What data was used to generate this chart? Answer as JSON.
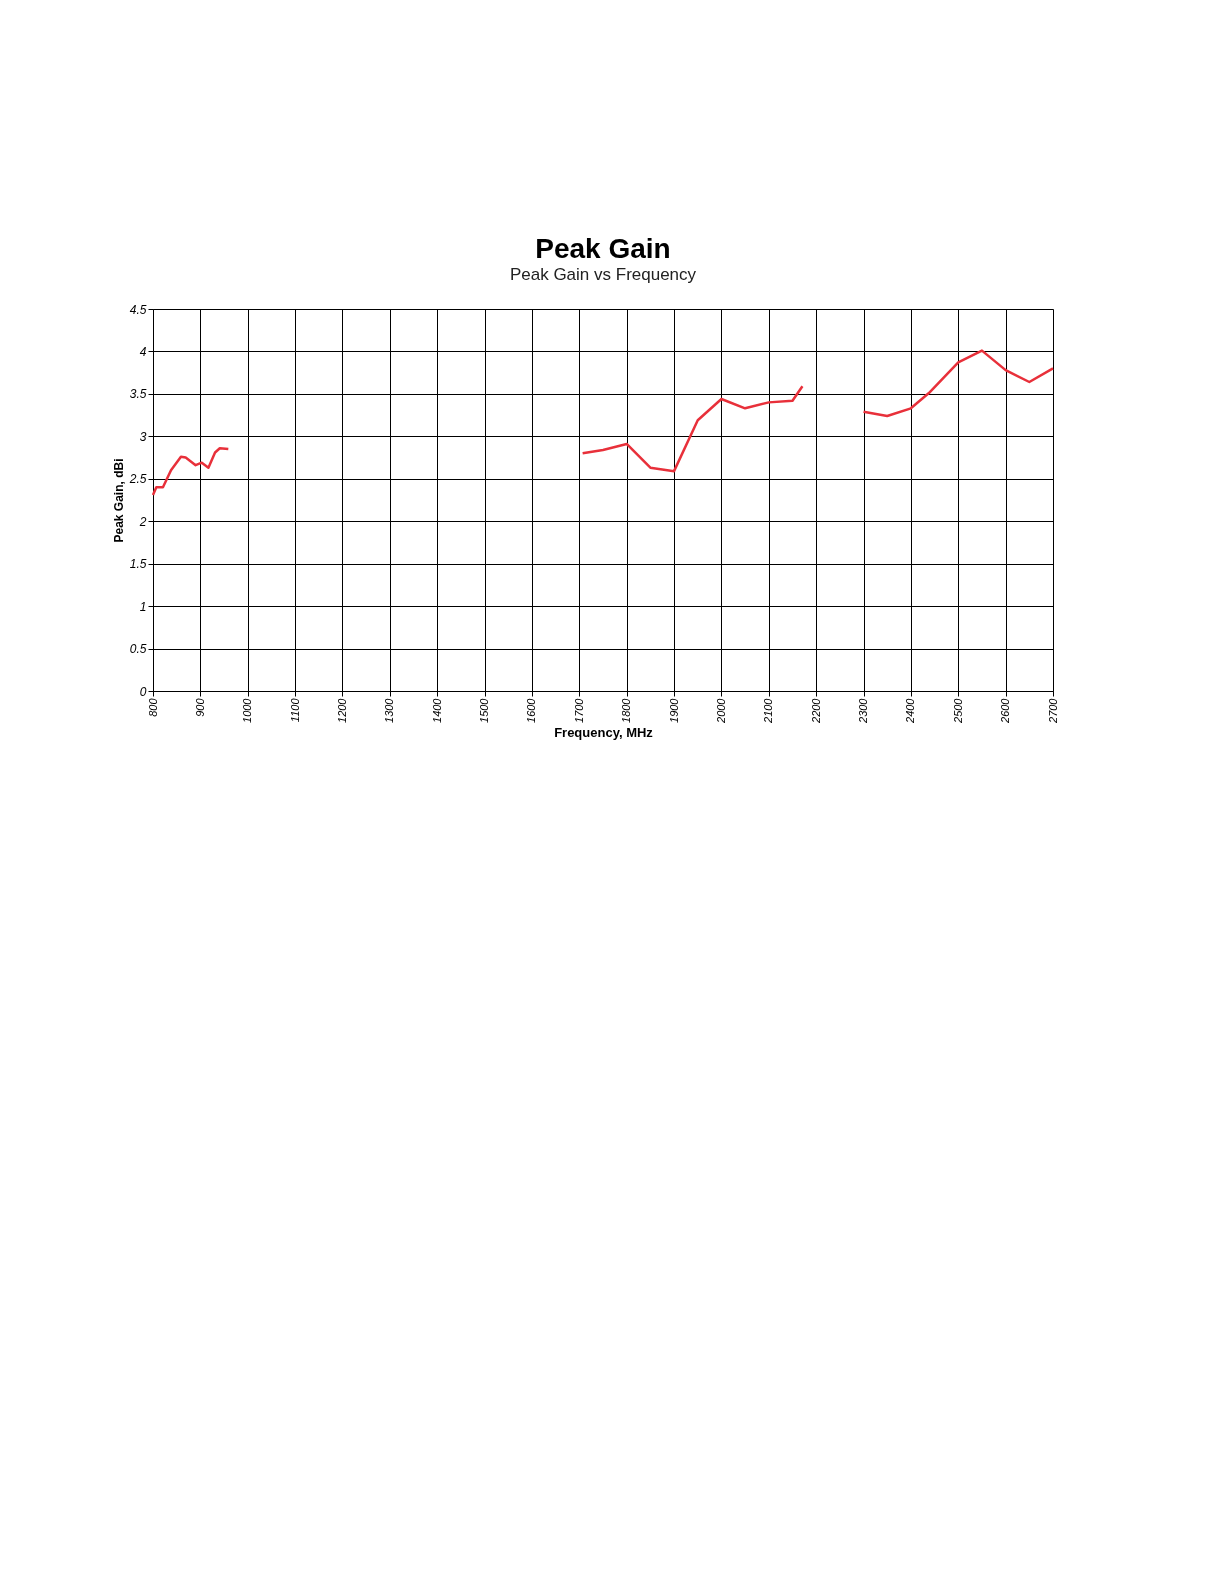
{
  "chart_data": {
    "type": "line",
    "title": "Peak Gain",
    "subtitle": "Peak Gain vs Frequency",
    "xlabel": "Frequency, MHz",
    "ylabel": "Peak Gain, dBi",
    "x": [
      800,
      807,
      821,
      838,
      859,
      869,
      890,
      903,
      917,
      931,
      941,
      959,
      1300,
      1707,
      1750,
      1800,
      1850,
      1900,
      1950,
      2000,
      2050,
      2100,
      2150,
      2171,
      2235,
      2300,
      2350,
      2400,
      2438,
      2500,
      2550,
      2600,
      2650,
      2700
    ],
    "series": [
      {
        "color": "#e8303a",
        "values": [
          2.31,
          2.4,
          2.4,
          2.6,
          2.76,
          2.75,
          2.66,
          2.69,
          2.63,
          2.81,
          2.86,
          2.85,
          null,
          2.8,
          2.84,
          2.91,
          2.63,
          2.59,
          3.19,
          3.44,
          3.33,
          3.4,
          3.42,
          3.59,
          null,
          3.29,
          3.24,
          3.33,
          3.51,
          3.87,
          4.01,
          3.78,
          3.64,
          3.8
        ]
      }
    ],
    "xlim": [
      800,
      2700
    ],
    "xticks": [
      800,
      900,
      1000,
      1100,
      1200,
      1300,
      1400,
      1500,
      1600,
      1700,
      1800,
      1900,
      2000,
      2100,
      2200,
      2300,
      2400,
      2500,
      2600,
      2700
    ],
    "ylim": [
      0,
      4.5
    ],
    "yticks": [
      0,
      0.5,
      1,
      1.5,
      2,
      2.5,
      3,
      3.5,
      4,
      4.5
    ],
    "grid": true,
    "legend": false,
    "marker": "none",
    "line_style": "solid"
  }
}
